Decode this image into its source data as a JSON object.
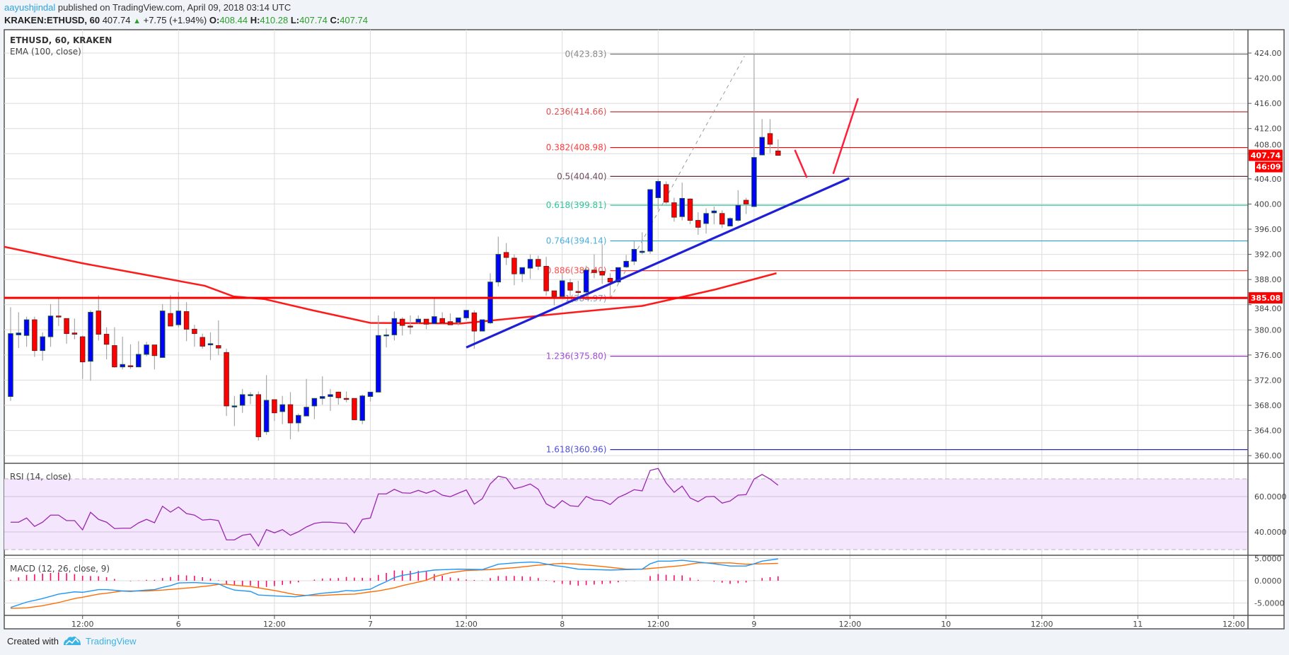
{
  "header": {
    "author": "aayushjindal",
    "published": "published on TradingView.com, April 09, 2018 03:14 UTC",
    "symbol": "KRAKEN:ETHUSD, 60",
    "last": "407.74",
    "change": "+7.75 (+1.94%)",
    "o_label": "O:",
    "o": "408.44",
    "h_label": "H:",
    "h": "410.28",
    "l_label": "L:",
    "l": "407.74",
    "c_label": "C:",
    "c": "407.74"
  },
  "legend": {
    "main": "ETHUSD, 60, KRAKEN",
    "ema": "EMA (100, close)",
    "rsi": "RSI (14, close)",
    "macd": "MACD (12, 26, close, 9)"
  },
  "price_tags": {
    "last": "407.74",
    "countdown": "46:09",
    "hline": "385.08"
  },
  "footer": {
    "created": "Created with",
    "brand": "TradingView"
  },
  "colors": {
    "up": "#0000ff",
    "down": "#ff0000",
    "ema": "#ff1a1a",
    "hline": "#ff0000",
    "trendline": "#1f1fd6",
    "arrows": "#ff1f3a",
    "rsi": "#9c27b0",
    "rsi_band": "#f3e6fd",
    "macd": "#2196f3",
    "signal": "#ff6d00",
    "histogram": "#ff0a6c"
  },
  "chart_data": {
    "type": "candlestick",
    "title": "ETHUSD, 60, KRAKEN",
    "ylim": [
      358,
      426
    ],
    "candles": [
      [
        369.4,
        383.6,
        368.7,
        379.4
      ],
      [
        379.2,
        382.8,
        377.1,
        379.5
      ],
      [
        379.1,
        382.1,
        377.3,
        381.6
      ],
      [
        381.6,
        382.1,
        375.7,
        376.7
      ],
      [
        376.7,
        379.6,
        375.1,
        378.9
      ],
      [
        378.9,
        384.1,
        377.3,
        382.2
      ],
      [
        382.2,
        385.2,
        380.6,
        382.1
      ],
      [
        381.8,
        381.8,
        377.8,
        379.4
      ],
      [
        379.5,
        381.8,
        378.5,
        379.3
      ],
      [
        378.9,
        379.1,
        372.2,
        374.9
      ],
      [
        375.0,
        383.1,
        371.9,
        382.8
      ],
      [
        383.0,
        385.5,
        378.3,
        379.3
      ],
      [
        379.3,
        380.4,
        375.3,
        377.7
      ],
      [
        377.5,
        380.4,
        374.0,
        374.1
      ],
      [
        374.1,
        378.9,
        373.7,
        374.5
      ],
      [
        374.3,
        377.7,
        373.8,
        374.2
      ],
      [
        374.1,
        378.2,
        374.1,
        376.1
      ],
      [
        376.1,
        378.1,
        375.8,
        377.6
      ],
      [
        377.6,
        377.6,
        373.7,
        375.9
      ],
      [
        375.6,
        384.1,
        375.6,
        383.0
      ],
      [
        382.6,
        385.5,
        380.6,
        380.6
      ],
      [
        380.8,
        386.0,
        380.4,
        383.0
      ],
      [
        382.9,
        384.4,
        378.2,
        380.1
      ],
      [
        380.1,
        380.8,
        377.3,
        379.4
      ],
      [
        378.8,
        379.4,
        377.0,
        377.4
      ],
      [
        377.6,
        379.6,
        375.2,
        377.8
      ],
      [
        377.5,
        381.5,
        376.0,
        377.1
      ],
      [
        376.4,
        377.0,
        366.3,
        367.9
      ],
      [
        367.9,
        369.5,
        364.7,
        367.9
      ],
      [
        368.0,
        370.6,
        366.8,
        369.7
      ],
      [
        369.7,
        370.1,
        368.2,
        369.7
      ],
      [
        369.7,
        370.2,
        362.4,
        363.0
      ],
      [
        363.8,
        372.8,
        363.3,
        368.8
      ],
      [
        368.9,
        368.9,
        365.5,
        366.8
      ],
      [
        367.0,
        369.5,
        365.0,
        368.1
      ],
      [
        368.1,
        370.1,
        362.6,
        365.2
      ],
      [
        365.2,
        366.7,
        363.8,
        366.4
      ],
      [
        366.3,
        372.2,
        366.3,
        367.7
      ],
      [
        367.9,
        369.1,
        365.8,
        369.1
      ],
      [
        369.1,
        372.6,
        368.1,
        369.4
      ],
      [
        369.4,
        370.6,
        367.1,
        369.7
      ],
      [
        370.1,
        370.2,
        368.1,
        369.2
      ],
      [
        369.1,
        370.2,
        368.5,
        369.0
      ],
      [
        369.1,
        369.1,
        365.7,
        365.7
      ],
      [
        365.6,
        369.7,
        365.0,
        369.5
      ],
      [
        369.4,
        370.1,
        368.6,
        370.1
      ],
      [
        370.1,
        382.3,
        370.1,
        379.1
      ],
      [
        379.1,
        380.2,
        377.2,
        379.2
      ],
      [
        379.2,
        382.9,
        378.3,
        381.8
      ],
      [
        381.7,
        382.0,
        379.1,
        380.7
      ],
      [
        380.6,
        382.3,
        379.3,
        380.5
      ],
      [
        381.2,
        382.3,
        381.0,
        381.7
      ],
      [
        381.7,
        381.7,
        380.1,
        380.9
      ],
      [
        381.0,
        385.2,
        381.0,
        382.1
      ],
      [
        381.8,
        382.8,
        381.0,
        381.1
      ],
      [
        381.3,
        382.6,
        380.8,
        380.8
      ],
      [
        381.2,
        381.9,
        380.7,
        381.9
      ],
      [
        381.9,
        383.1,
        381.5,
        383.1
      ],
      [
        382.7,
        383.1,
        377.0,
        379.8
      ],
      [
        379.8,
        381.6,
        379.8,
        381.6
      ],
      [
        381.1,
        389.0,
        380.9,
        387.6
      ],
      [
        387.6,
        394.8,
        386.9,
        392.0
      ],
      [
        392.3,
        393.8,
        390.3,
        391.5
      ],
      [
        391.4,
        392.0,
        387.1,
        388.9
      ],
      [
        388.9,
        389.9,
        387.6,
        389.9
      ],
      [
        389.8,
        392.0,
        388.1,
        391.2
      ],
      [
        391.2,
        391.8,
        389.5,
        390.1
      ],
      [
        390.1,
        391.6,
        385.4,
        386.2
      ],
      [
        386.2,
        386.2,
        383.9,
        385.3
      ],
      [
        385.3,
        388.9,
        385.3,
        387.8
      ],
      [
        387.5,
        388.1,
        385.3,
        386.3
      ],
      [
        386.1,
        387.8,
        385.3,
        386.0
      ],
      [
        386.0,
        390.2,
        385.3,
        389.5
      ],
      [
        389.5,
        392.0,
        388.2,
        389.1
      ],
      [
        389.3,
        393.6,
        387.3,
        388.7
      ],
      [
        388.2,
        389.0,
        385.2,
        387.6
      ],
      [
        387.6,
        389.9,
        387.4,
        389.9
      ],
      [
        390.0,
        391.9,
        389.8,
        390.9
      ],
      [
        390.9,
        394.1,
        390.3,
        392.8
      ],
      [
        392.3,
        395.5,
        392.0,
        392.5
      ],
      [
        392.5,
        402.3,
        392.1,
        402.3
      ],
      [
        401.0,
        404.0,
        399.1,
        403.6
      ],
      [
        403.1,
        403.6,
        400.0,
        400.3
      ],
      [
        400.2,
        401.0,
        397.2,
        397.9
      ],
      [
        398.0,
        403.4,
        397.4,
        400.9
      ],
      [
        400.8,
        400.9,
        396.8,
        397.4
      ],
      [
        397.4,
        398.7,
        395.1,
        396.3
      ],
      [
        396.9,
        399.3,
        395.3,
        398.5
      ],
      [
        398.6,
        399.6,
        396.8,
        398.9
      ],
      [
        398.5,
        399.0,
        396.2,
        396.8
      ],
      [
        396.5,
        397.9,
        396.5,
        397.7
      ],
      [
        397.4,
        402.2,
        397.2,
        399.8
      ],
      [
        400.6,
        401.0,
        398.4,
        400.0
      ],
      [
        399.6,
        423.83,
        399.6,
        407.4
      ],
      [
        407.8,
        413.5,
        407.8,
        410.6
      ],
      [
        411.2,
        413.5,
        408.1,
        409.5
      ],
      [
        408.44,
        410.28,
        407.74,
        407.74
      ]
    ],
    "ema_points": [
      [
        -1.3,
        393.2
      ],
      [
        8.9,
        390.6
      ],
      [
        16.2,
        388.9
      ],
      [
        24.3,
        387.0
      ],
      [
        27.9,
        385.3
      ],
      [
        31.7,
        384.9
      ],
      [
        37.8,
        383.1
      ],
      [
        45,
        381.1
      ],
      [
        56.3,
        381.0
      ],
      [
        70.6,
        382.8
      ],
      [
        79,
        383.8
      ],
      [
        88.1,
        386.4
      ],
      [
        95.8,
        389.0
      ]
    ],
    "rsi": [
      45.5,
      45.5,
      47.9,
      43.1,
      45.5,
      49.5,
      49.5,
      46.4,
      46.4,
      41.2,
      51.1,
      47.1,
      45.5,
      41.9,
      42.1,
      42.1,
      45.1,
      47.1,
      45.2,
      54.5,
      51.2,
      54.1,
      50.4,
      49.5,
      46.7,
      47.1,
      46.4,
      35.5,
      35.5,
      38.1,
      38.8,
      32.0,
      41.3,
      39.5,
      41.3,
      38.1,
      40.1,
      42.8,
      44.8,
      45.5,
      45.5,
      45.1,
      44.8,
      39.5,
      47.1,
      47.9,
      61.5,
      61.5,
      64.1,
      62.1,
      61.9,
      63.5,
      61.9,
      63.5,
      60.8,
      59.9,
      61.9,
      63.7,
      55.7,
      58.8,
      67.2,
      71.5,
      70.5,
      64.4,
      65.5,
      67.1,
      64.1,
      55.9,
      53.5,
      57.7,
      54.8,
      54.4,
      60.1,
      58.1,
      57.7,
      55.5,
      59.5,
      61.5,
      63.9,
      63.2,
      74.8,
      75.9,
      67.7,
      62.4,
      65.9,
      59.2,
      57.1,
      59.9,
      60.1,
      56.3,
      57.5,
      60.8,
      61.1,
      69.9,
      72.5,
      69.9,
      66.4
    ],
    "macd_points": [
      [
        0,
        -6.0
      ],
      [
        2,
        -4.8
      ],
      [
        4,
        -4.0
      ],
      [
        6,
        -3.0
      ],
      [
        8,
        -2.5
      ],
      [
        9,
        -2.6
      ],
      [
        11,
        -2.0
      ],
      [
        12,
        -2.0
      ],
      [
        14,
        -2.3
      ],
      [
        15,
        -2.4
      ],
      [
        17,
        -2.1
      ],
      [
        18,
        -2.0
      ],
      [
        19,
        -1.5
      ],
      [
        20,
        -1.1
      ],
      [
        21,
        -0.5
      ],
      [
        23,
        -0.4
      ],
      [
        25,
        -0.6
      ],
      [
        26,
        -0.7
      ],
      [
        27,
        -1.5
      ],
      [
        28,
        -2.1
      ],
      [
        30,
        -2.4
      ],
      [
        31,
        -3.2
      ],
      [
        33,
        -3.4
      ],
      [
        35.6,
        -3.6
      ],
      [
        37,
        -3.3
      ],
      [
        39,
        -2.8
      ],
      [
        41,
        -2.5
      ],
      [
        42,
        -2.2
      ],
      [
        43,
        -2.3
      ],
      [
        44,
        -2.1
      ],
      [
        45,
        -1.9
      ],
      [
        46,
        -1.0
      ],
      [
        47,
        -0.2
      ],
      [
        48,
        0.7
      ],
      [
        49,
        1.2
      ],
      [
        50,
        1.5
      ],
      [
        51,
        1.9
      ],
      [
        53,
        2.4
      ],
      [
        56,
        2.6
      ],
      [
        59,
        2.5
      ],
      [
        61,
        3.7
      ],
      [
        63,
        4.0
      ],
      [
        65,
        4.2
      ],
      [
        66,
        4.1
      ],
      [
        68,
        3.4
      ],
      [
        69,
        3.2
      ],
      [
        71,
        2.6
      ],
      [
        75,
        2.4
      ],
      [
        79,
        2.6
      ],
      [
        80,
        3.8
      ],
      [
        81,
        4.4
      ],
      [
        82.5,
        4.4
      ],
      [
        84,
        4.6
      ],
      [
        86,
        4.2
      ],
      [
        88,
        3.8
      ],
      [
        90,
        3.3
      ],
      [
        92,
        3.3
      ],
      [
        93,
        3.8
      ],
      [
        94,
        4.4
      ],
      [
        96,
        4.9
      ]
    ],
    "signal_points": [
      [
        0,
        -6.2
      ],
      [
        2,
        -6.1
      ],
      [
        4,
        -5.6
      ],
      [
        6,
        -4.9
      ],
      [
        8,
        -4.0
      ],
      [
        9,
        -3.7
      ],
      [
        11,
        -3.0
      ],
      [
        12,
        -2.8
      ],
      [
        14,
        -2.3
      ],
      [
        17,
        -2.3
      ],
      [
        19,
        -2.1
      ],
      [
        21,
        -1.8
      ],
      [
        23,
        -1.5
      ],
      [
        25,
        -1.1
      ],
      [
        26,
        -0.8
      ],
      [
        27,
        -0.8
      ],
      [
        28,
        -1.0
      ],
      [
        30,
        -1.3
      ],
      [
        31,
        -1.6
      ],
      [
        33,
        -2.2
      ],
      [
        35.6,
        -3.1
      ],
      [
        37,
        -3.3
      ],
      [
        39,
        -3.3
      ],
      [
        41,
        -3.1
      ],
      [
        43,
        -3.0
      ],
      [
        45,
        -2.5
      ],
      [
        46,
        -2.3
      ],
      [
        48,
        -1.6
      ],
      [
        49,
        -1.1
      ],
      [
        50,
        -0.7
      ],
      [
        52,
        0.1
      ],
      [
        53,
        0.9
      ],
      [
        55,
        1.8
      ],
      [
        57,
        2.3
      ],
      [
        60,
        2.5
      ],
      [
        63.5,
        3.0
      ],
      [
        66,
        3.5
      ],
      [
        69,
        3.9
      ],
      [
        71,
        3.7
      ],
      [
        74,
        3.2
      ],
      [
        77,
        2.6
      ],
      [
        79,
        2.6
      ],
      [
        81,
        2.9
      ],
      [
        84,
        3.4
      ],
      [
        86,
        4.0
      ],
      [
        90,
        4.0
      ],
      [
        92,
        3.7
      ],
      [
        94,
        3.8
      ],
      [
        96,
        3.9
      ]
    ],
    "fib_levels": [
      {
        "label": "0(423.83)",
        "price": 423.83,
        "color": "#787878",
        "label_color": "#888888"
      },
      {
        "label": "0.236(414.66)",
        "price": 414.66,
        "color": "#b22222",
        "label_color": "#e05050"
      },
      {
        "label": "0.382(408.98)",
        "price": 408.98,
        "color": "#ff0000",
        "label_color": "#ff3b3b"
      },
      {
        "label": "0.5(404.40)",
        "price": 404.4,
        "color": "#4a1430",
        "label_color": "#6b4a5c"
      },
      {
        "label": "0.618(399.81)",
        "price": 399.81,
        "color": "#2fc69a",
        "label_color": "#2fc69a"
      },
      {
        "label": "0.764(394.14)",
        "price": 394.14,
        "color": "#2a9fd6",
        "label_color": "#4aaee0"
      },
      {
        "label": "0.886(389.40)",
        "price": 389.4,
        "color": "#ff1a1a",
        "label_color": "#ff5050"
      },
      {
        "label": "1(384.97)",
        "price": 384.97,
        "color": "#7b9cc8",
        "label_color": "#7b9cc8"
      },
      {
        "label": "1.236(375.80)",
        "price": 375.8,
        "color": "#9c30d0",
        "label_color": "#a24ad4"
      },
      {
        "label": "1.618(360.96)",
        "price": 360.96,
        "color": "#2a2acc",
        "label_color": "#5050d8"
      }
    ],
    "fib_anchor": {
      "from": [
        75,
        384.97
      ],
      "to": [
        91.8,
        423.5
      ]
    },
    "horizontal_line": 385.08,
    "trendline": [
      [
        57,
        377.2
      ],
      [
        104.9,
        404.1
      ]
    ],
    "arrows": [
      [
        [
          98.1,
          408.6
        ],
        [
          99.6,
          404.2
        ]
      ],
      [
        [
          102.9,
          404.8
        ],
        [
          106.0,
          416.8
        ]
      ]
    ],
    "y_ticks": [
      "424.00",
      "420.00",
      "416.00",
      "412.00",
      "408.00",
      "404.00",
      "400.00",
      "396.00",
      "392.00",
      "388.00",
      "384.00",
      "380.00",
      "376.00",
      "372.00",
      "368.00",
      "364.00",
      "360.00"
    ],
    "rsi_ticks": [
      "60.0000",
      "40.0000"
    ],
    "rsi_bands": [
      70,
      30
    ],
    "macd_ticks": [
      "5.0000",
      "0.0000",
      "-5.0000"
    ],
    "x_ticks": [
      {
        "idx": 9,
        "label": "12:00"
      },
      {
        "idx": 21,
        "label": "6"
      },
      {
        "idx": 33,
        "label": "12:00"
      },
      {
        "idx": 45,
        "label": "7"
      },
      {
        "idx": 57,
        "label": "12:00"
      },
      {
        "idx": 69,
        "label": "8"
      },
      {
        "idx": 81,
        "label": "12:00"
      },
      {
        "idx": 93,
        "label": "9"
      },
      {
        "idx": 105,
        "label": "12:00"
      },
      {
        "idx": 117,
        "label": "10"
      },
      {
        "idx": 129,
        "label": "12:00"
      },
      {
        "idx": 141,
        "label": "11"
      },
      {
        "idx": 153,
        "label": "12:00"
      }
    ]
  }
}
